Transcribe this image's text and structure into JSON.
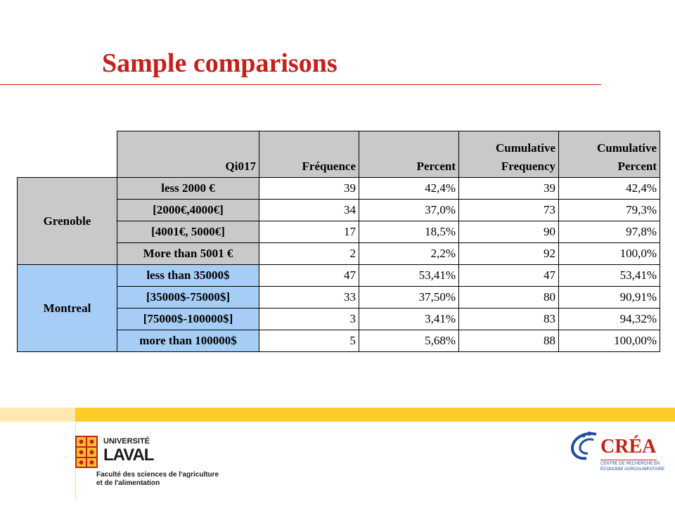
{
  "title": "Sample comparisons",
  "table": {
    "header": {
      "col0": "Qi017",
      "col1": "Fréquence",
      "col2": "Percent",
      "col3a": "Cumulative",
      "col3b": "Frequency",
      "col4a": "Cumulative",
      "col4b": "Percent"
    },
    "groups": [
      {
        "name": "Grenoble",
        "rows": [
          {
            "cat": "less 2000 €",
            "freq": "39",
            "pct": "42,4%",
            "cumfreq": "39",
            "cumpct": "42,4%"
          },
          {
            "cat": "[2000€,4000€]",
            "freq": "34",
            "pct": "37,0%",
            "cumfreq": "73",
            "cumpct": "79,3%"
          },
          {
            "cat": "[4001€, 5000€]",
            "freq": "17",
            "pct": "18,5%",
            "cumfreq": "90",
            "cumpct": "97,8%"
          },
          {
            "cat": "More than 5001 €",
            "freq": "2",
            "pct": "2,2%",
            "cumfreq": "92",
            "cumpct": "100,0%"
          }
        ]
      },
      {
        "name": "Montreal",
        "rows": [
          {
            "cat": "less than 35000$",
            "freq": "47",
            "pct": "53,41%",
            "cumfreq": "47",
            "cumpct": "53,41%"
          },
          {
            "cat": "[35000$-75000$]",
            "freq": "33",
            "pct": "37,50%",
            "cumfreq": "80",
            "cumpct": "90,91%"
          },
          {
            "cat": "[75000$-100000$]",
            "freq": "3",
            "pct": "3,41%",
            "cumfreq": "83",
            "cumpct": "94,32%"
          },
          {
            "cat": "more than 100000$",
            "freq": "5",
            "pct": "5,68%",
            "cumfreq": "88",
            "cumpct": "100,00%"
          }
        ]
      }
    ]
  },
  "logos": {
    "laval": {
      "line1": "UNIVERSITÉ",
      "line2": "LAVAL",
      "line3": "Faculté des sciences de l'agriculture",
      "line4": "et de l'alimentation"
    },
    "crea": {
      "name": "CRÉA",
      "line1": "CENTRE DE RECHERCHE EN",
      "line2": "ÉCONOMIE AGROALIMENTAIRE"
    }
  },
  "colors": {
    "title": "#c4201c",
    "grenoble_fill": "#c9c9c9",
    "montreal_fill": "#a6cdf6",
    "footer_band": "#fccc28",
    "crea_blue": "#1f4e9c",
    "crea_red": "#c4201c"
  }
}
